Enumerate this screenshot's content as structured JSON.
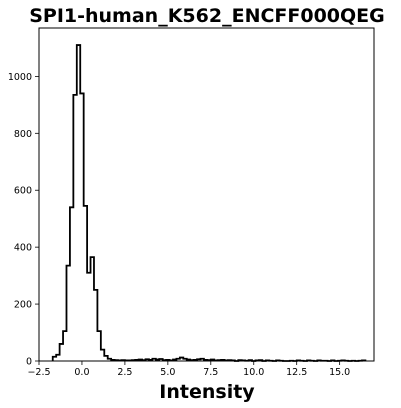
{
  "chart_data": {
    "type": "histogram",
    "title": "SPI1-human_K562_ENCFF000QEG",
    "xlabel": "Intensity",
    "ylabel": "",
    "xlim": [
      -2.5,
      17.0
    ],
    "ylim": [
      0,
      1170
    ],
    "grid": false,
    "bin_width": 0.2,
    "x_ticks": [
      -2.5,
      0.0,
      2.5,
      5.0,
      7.5,
      10.0,
      12.5,
      15.0
    ],
    "x_tick_labels": [
      "−2.5",
      "0.0",
      "2.5",
      "5.0",
      "7.5",
      "10.0",
      "12.5",
      "15.0"
    ],
    "y_ticks": [
      0,
      200,
      400,
      600,
      800,
      1000
    ],
    "y_tick_labels": [
      "0",
      "200",
      "400",
      "600",
      "800",
      "1000"
    ],
    "bins_start": [
      -1.7,
      -1.5,
      -1.3,
      -1.1,
      -0.9,
      -0.7,
      -0.5,
      -0.3,
      -0.1,
      0.1,
      0.3,
      0.5,
      0.7,
      0.9,
      1.1,
      1.3,
      1.5,
      1.7,
      1.9,
      2.1,
      2.3,
      2.5,
      2.7,
      2.9,
      3.1,
      3.3,
      3.5,
      3.7,
      3.9,
      4.1,
      4.3,
      4.5,
      4.7,
      4.9,
      5.1,
      5.3,
      5.5,
      5.7,
      5.9,
      6.1,
      6.3,
      6.5,
      6.7,
      6.9,
      7.1,
      7.3,
      7.5,
      7.7,
      7.9,
      8.1,
      8.3,
      8.5,
      8.7,
      8.9,
      9.1,
      9.3,
      9.5,
      9.7,
      9.9,
      10.1,
      10.3,
      10.5,
      10.7,
      10.9,
      11.1,
      11.3,
      11.5,
      11.7,
      11.9,
      12.1,
      12.3,
      12.5,
      12.7,
      12.9,
      13.1,
      13.3,
      13.5,
      13.7,
      13.9,
      14.1,
      14.3,
      14.5,
      14.7,
      14.9,
      15.1,
      15.3,
      15.5,
      15.7,
      15.9,
      16.1,
      16.3
    ],
    "counts": [
      15,
      22,
      60,
      105,
      335,
      540,
      935,
      1110,
      940,
      545,
      310,
      365,
      250,
      105,
      40,
      18,
      8,
      4,
      3,
      2,
      3,
      2,
      2,
      3,
      4,
      5,
      3,
      6,
      4,
      8,
      5,
      7,
      3,
      4,
      2,
      5,
      8,
      12,
      8,
      5,
      3,
      4,
      6,
      8,
      4,
      3,
      5,
      2,
      3,
      4,
      2,
      3,
      2,
      0,
      3,
      2,
      1,
      3,
      0,
      2,
      3,
      0,
      2,
      1,
      0,
      2,
      1,
      0,
      0,
      1,
      0,
      2,
      1,
      0,
      2,
      1,
      0,
      2,
      1,
      1,
      0,
      2,
      0,
      1,
      2,
      1,
      0,
      1,
      0,
      1,
      2
    ],
    "line_color": "#000000"
  }
}
